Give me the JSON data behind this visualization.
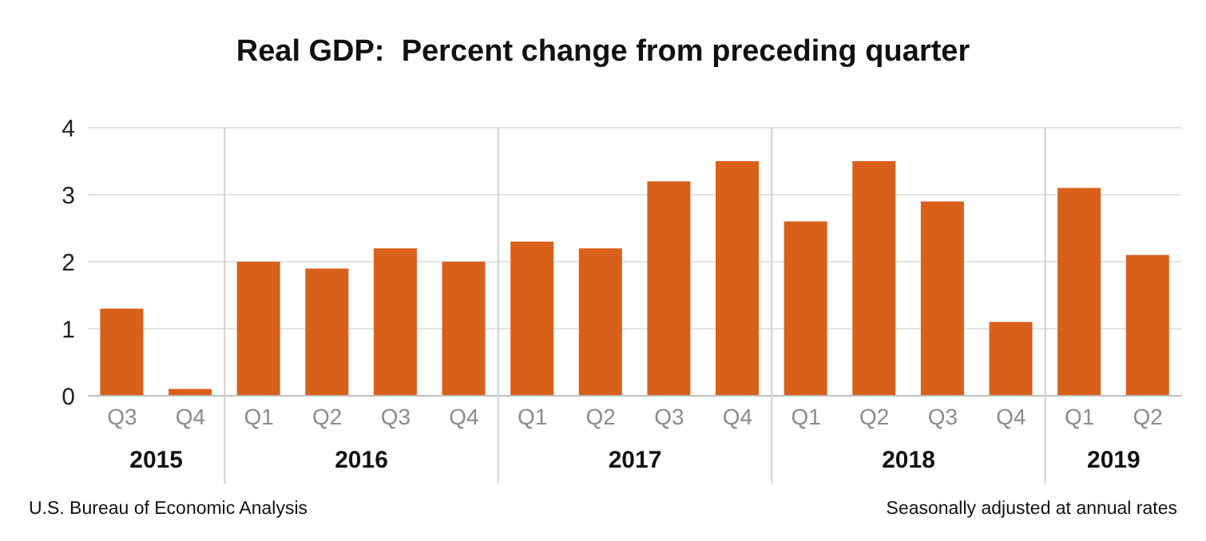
{
  "chart_data": {
    "type": "bar",
    "title": "Real GDP:  Percent change from preceding quarter",
    "categories": [
      "Q3",
      "Q4",
      "Q1",
      "Q2",
      "Q3",
      "Q4",
      "Q1",
      "Q2",
      "Q3",
      "Q4",
      "Q1",
      "Q2",
      "Q3",
      "Q4",
      "Q1",
      "Q2"
    ],
    "values": [
      1.3,
      0.1,
      2.0,
      1.9,
      2.2,
      2.0,
      2.3,
      2.2,
      3.2,
      3.5,
      2.6,
      3.5,
      2.9,
      1.1,
      3.1,
      2.1
    ],
    "color": "#d9601a",
    "ylim": [
      0,
      4
    ],
    "yticks": [
      0,
      1,
      2,
      3,
      4
    ],
    "grid": "y",
    "annotations": [
      "2015",
      "2016",
      "2017",
      "2018",
      "2019",
      "U.S. Bureau of Economic Analysis",
      "Seasonally adjusted at annual rates"
    ]
  }
}
